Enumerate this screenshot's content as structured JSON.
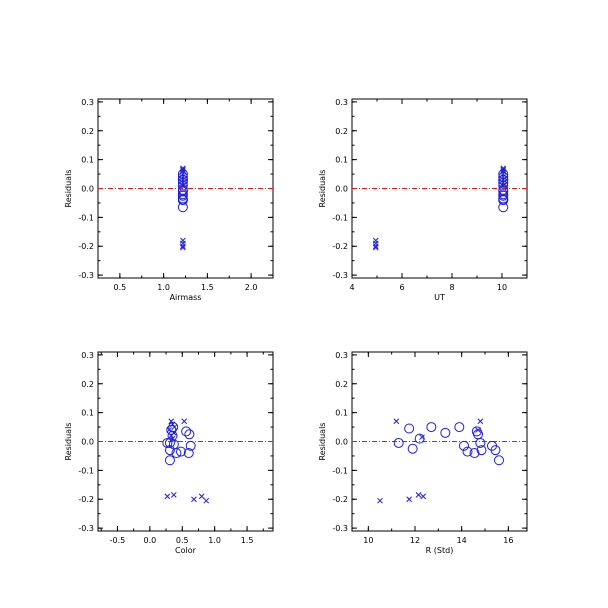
{
  "chart_data": [
    {
      "type": "scatter",
      "xlabel": "Airmass",
      "ylabel": "Residuals",
      "xlim": [
        0.25,
        2.25
      ],
      "ylim": [
        -0.31,
        0.31
      ],
      "xticks": [
        "0.5",
        "1.0",
        "1.5",
        "2.0"
      ],
      "xtick_values": [
        0.5,
        1.0,
        1.5,
        2.0
      ],
      "yticks": [
        "-0.3",
        "-0.2",
        "-0.1",
        "0.0",
        "0.1",
        "0.2",
        "0.3"
      ],
      "ytick_values": [
        -0.3,
        -0.2,
        -0.1,
        0.0,
        0.1,
        0.2,
        0.3
      ],
      "reference_line": 0.0,
      "series": [
        {
          "marker": "circle",
          "points": [
            [
              1.22,
              0.05
            ],
            [
              1.22,
              0.04
            ],
            [
              1.22,
              0.03
            ],
            [
              1.22,
              0.03
            ],
            [
              1.22,
              0.02
            ],
            [
              1.22,
              0.01
            ],
            [
              1.22,
              -0.005
            ],
            [
              1.22,
              -0.01
            ],
            [
              1.22,
              -0.02
            ],
            [
              1.22,
              -0.025
            ],
            [
              1.22,
              -0.035
            ],
            [
              1.22,
              -0.04
            ],
            [
              1.22,
              -0.04
            ],
            [
              1.22,
              -0.065
            ]
          ]
        },
        {
          "marker": "x",
          "points": [
            [
              1.22,
              0.07
            ],
            [
              1.22,
              0.065
            ],
            [
              1.22,
              0.06
            ],
            [
              1.22,
              0.05
            ],
            [
              1.22,
              0.04
            ],
            [
              1.22,
              0.03
            ],
            [
              1.22,
              0.02
            ],
            [
              1.22,
              0.01
            ],
            [
              1.22,
              -0.18
            ],
            [
              1.22,
              -0.19
            ],
            [
              1.22,
              -0.2
            ],
            [
              1.22,
              -0.205
            ]
          ]
        }
      ]
    },
    {
      "type": "scatter",
      "xlabel": "UT",
      "ylabel": "Residuals",
      "xlim": [
        4,
        11
      ],
      "ylim": [
        -0.31,
        0.31
      ],
      "xticks": [
        "4",
        "6",
        "8",
        "10"
      ],
      "xtick_values": [
        4,
        6,
        8,
        10
      ],
      "yticks": [
        "-0.3",
        "-0.2",
        "-0.1",
        "0.0",
        "0.1",
        "0.2",
        "0.3"
      ],
      "ytick_values": [
        -0.3,
        -0.2,
        -0.1,
        0.0,
        0.1,
        0.2,
        0.3
      ],
      "reference_line": 0.0,
      "series": [
        {
          "marker": "circle",
          "points": [
            [
              10.05,
              0.05
            ],
            [
              10.05,
              0.04
            ],
            [
              10.05,
              0.03
            ],
            [
              10.05,
              0.03
            ],
            [
              10.05,
              0.02
            ],
            [
              10.05,
              0.01
            ],
            [
              10.05,
              -0.005
            ],
            [
              10.05,
              -0.01
            ],
            [
              10.05,
              -0.02
            ],
            [
              10.05,
              -0.025
            ],
            [
              10.05,
              -0.035
            ],
            [
              10.05,
              -0.04
            ],
            [
              10.05,
              -0.04
            ],
            [
              10.05,
              -0.065
            ]
          ]
        },
        {
          "marker": "x",
          "points": [
            [
              10.05,
              0.07
            ],
            [
              10.05,
              0.065
            ],
            [
              10.05,
              0.06
            ],
            [
              10.05,
              0.05
            ],
            [
              10.05,
              0.04
            ],
            [
              10.05,
              0.03
            ],
            [
              10.05,
              0.02
            ],
            [
              10.05,
              0.01
            ],
            [
              4.95,
              -0.18
            ],
            [
              4.95,
              -0.19
            ],
            [
              4.95,
              -0.2
            ],
            [
              4.95,
              -0.205
            ]
          ]
        }
      ]
    },
    {
      "type": "scatter",
      "xlabel": "Color",
      "ylabel": "Residuals",
      "xlim": [
        -0.8,
        1.9
      ],
      "ylim": [
        -0.31,
        0.31
      ],
      "xticks": [
        "-0.5",
        "0.0",
        "0.5",
        "1.0",
        "1.5"
      ],
      "xtick_values": [
        -0.5,
        0.0,
        0.5,
        1.0,
        1.5
      ],
      "yticks": [
        "-0.3",
        "-0.2",
        "-0.1",
        "0.0",
        "0.1",
        "0.2",
        "0.3"
      ],
      "ytick_values": [
        -0.3,
        -0.2,
        -0.1,
        0.0,
        0.1,
        0.2,
        0.3
      ],
      "reference_line": 0.0,
      "series": [
        {
          "marker": "circle",
          "points": [
            [
              0.36,
              0.05
            ],
            [
              0.33,
              0.04
            ],
            [
              0.56,
              0.035
            ],
            [
              0.61,
              0.025
            ],
            [
              0.35,
              0.02
            ],
            [
              0.27,
              -0.005
            ],
            [
              0.31,
              -0.005
            ],
            [
              0.37,
              -0.01
            ],
            [
              0.63,
              -0.015
            ],
            [
              0.31,
              -0.03
            ],
            [
              0.48,
              -0.035
            ],
            [
              0.41,
              -0.04
            ],
            [
              0.6,
              -0.04
            ],
            [
              0.31,
              -0.065
            ]
          ]
        },
        {
          "marker": "x",
          "points": [
            [
              0.33,
              0.07
            ],
            [
              0.53,
              0.07
            ],
            [
              0.35,
              0.06
            ],
            [
              0.38,
              0.05
            ],
            [
              0.3,
              0.04
            ],
            [
              0.37,
              0.03
            ],
            [
              0.33,
              0.02
            ],
            [
              0.35,
              0.01
            ],
            [
              0.37,
              -0.185
            ],
            [
              0.27,
              -0.19
            ],
            [
              0.8,
              -0.19
            ],
            [
              0.68,
              -0.2
            ],
            [
              0.87,
              -0.205
            ]
          ]
        }
      ]
    },
    {
      "type": "scatter",
      "xlabel": "R (Std)",
      "ylabel": "Residuals",
      "xlim": [
        9.3,
        16.8
      ],
      "ylim": [
        -0.31,
        0.31
      ],
      "xticks": [
        "10",
        "12",
        "14",
        "16"
      ],
      "xtick_values": [
        10,
        12,
        14,
        16
      ],
      "yticks": [
        "-0.3",
        "-0.2",
        "-0.1",
        "0.0",
        "0.1",
        "0.2",
        "0.3"
      ],
      "ytick_values": [
        -0.3,
        -0.2,
        -0.1,
        0.0,
        0.1,
        0.2,
        0.3
      ],
      "reference_line": 0.0,
      "series": [
        {
          "marker": "circle",
          "points": [
            [
              12.7,
              0.05
            ],
            [
              11.75,
              0.045
            ],
            [
              13.9,
              0.05
            ],
            [
              14.65,
              0.035
            ],
            [
              13.3,
              0.03
            ],
            [
              14.7,
              0.025
            ],
            [
              12.2,
              0.01
            ],
            [
              11.3,
              -0.005
            ],
            [
              14.8,
              -0.005
            ],
            [
              15.3,
              -0.015
            ],
            [
              14.1,
              -0.015
            ],
            [
              11.9,
              -0.025
            ],
            [
              14.25,
              -0.035
            ],
            [
              14.55,
              -0.04
            ],
            [
              14.85,
              -0.03
            ],
            [
              15.45,
              -0.03
            ],
            [
              15.6,
              -0.065
            ]
          ]
        },
        {
          "marker": "x",
          "points": [
            [
              11.2,
              0.07
            ],
            [
              14.8,
              0.07
            ],
            [
              14.7,
              0.04
            ],
            [
              12.3,
              0.015
            ],
            [
              12.15,
              -0.185
            ],
            [
              12.35,
              -0.19
            ],
            [
              11.75,
              -0.2
            ],
            [
              10.5,
              -0.205
            ]
          ]
        }
      ]
    }
  ]
}
